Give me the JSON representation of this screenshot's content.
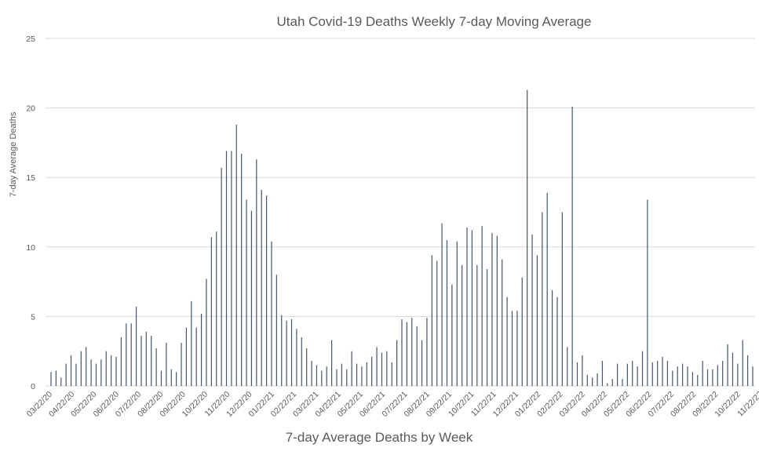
{
  "chart_data": {
    "type": "bar",
    "title": "Utah Covid-19 Deaths Weekly 7-day Moving Average",
    "xlabel": "7-day Average Deaths by Week",
    "ylabel": "7-day Average Deaths",
    "ylim": [
      0,
      25
    ],
    "y_ticks": [
      0,
      5,
      10,
      15,
      20,
      25
    ],
    "grid": true,
    "legend": "none",
    "color": "#44546a",
    "x_tick_labels": [
      "03/22/20",
      "04/22/20",
      "05/22/20",
      "06/22/20",
      "07/22/20",
      "08/22/20",
      "09/22/20",
      "10/22/20",
      "11/22/20",
      "12/22/20",
      "01/22/21",
      "02/22/21",
      "03/22/21",
      "04/22/21",
      "05/22/21",
      "06/22/21",
      "07/22/21",
      "08/22/21",
      "09/22/21",
      "10/22/21",
      "11/22/21",
      "12/22/21",
      "01/22/22",
      "02/22/22",
      "03/22/22",
      "04/22/22",
      "05/22/22",
      "06/22/22",
      "07/22/22",
      "08/22/22",
      "09/22/22",
      "10/22/22",
      "11/22/22"
    ],
    "x_tick_positions": [
      0,
      4.43,
      8.86,
      13.29,
      17.71,
      22.14,
      26.57,
      31.0,
      35.43,
      39.86,
      44.29,
      48.71,
      53.14,
      57.57,
      62.0,
      66.43,
      70.86,
      75.29,
      79.71,
      84.14,
      88.57,
      93.0,
      97.43,
      101.86,
      106.29,
      110.71,
      115.14,
      119.57,
      124.0,
      128.43,
      132.86,
      137.29,
      141.71
    ],
    "values": [
      1.0,
      1.1,
      0.6,
      1.6,
      2.2,
      1.6,
      2.5,
      2.8,
      1.9,
      1.6,
      1.9,
      2.5,
      2.2,
      2.1,
      3.5,
      4.5,
      4.5,
      5.7,
      3.6,
      3.9,
      3.6,
      2.7,
      1.1,
      3.1,
      1.2,
      1.0,
      3.1,
      4.2,
      6.1,
      4.2,
      5.2,
      7.7,
      10.7,
      11.1,
      15.7,
      16.9,
      16.9,
      18.8,
      16.7,
      13.4,
      12.6,
      16.3,
      14.1,
      13.7,
      10.4,
      8.0,
      5.1,
      4.7,
      4.8,
      4.1,
      3.5,
      2.7,
      1.8,
      1.5,
      1.1,
      1.4,
      3.3,
      1.2,
      1.6,
      1.2,
      2.5,
      1.6,
      1.4,
      1.7,
      2.1,
      2.8,
      2.4,
      2.5,
      1.7,
      3.3,
      4.8,
      4.6,
      4.9,
      4.3,
      3.3,
      4.9,
      9.4,
      9.0,
      11.7,
      10.5,
      7.3,
      10.4,
      8.7,
      11.4,
      11.2,
      8.7,
      11.5,
      8.4,
      11.0,
      10.8,
      9.1,
      6.4,
      5.4,
      5.4,
      7.8,
      21.3,
      10.9,
      9.4,
      12.5,
      13.9,
      6.9,
      6.4,
      12.5,
      2.8,
      20.1,
      1.7,
      2.2,
      0.8,
      0.6,
      0.9,
      1.8,
      0.2,
      0.5,
      1.6,
      0.5,
      1.6,
      1.8,
      1.4,
      2.5,
      13.4,
      1.7,
      1.8,
      2.1,
      1.8,
      1.1,
      1.4,
      1.6,
      1.4,
      1.0,
      0.8,
      1.8,
      1.2,
      1.2,
      1.5,
      1.8,
      3.0,
      2.4,
      1.6,
      3.3,
      2.2,
      1.4
    ]
  }
}
